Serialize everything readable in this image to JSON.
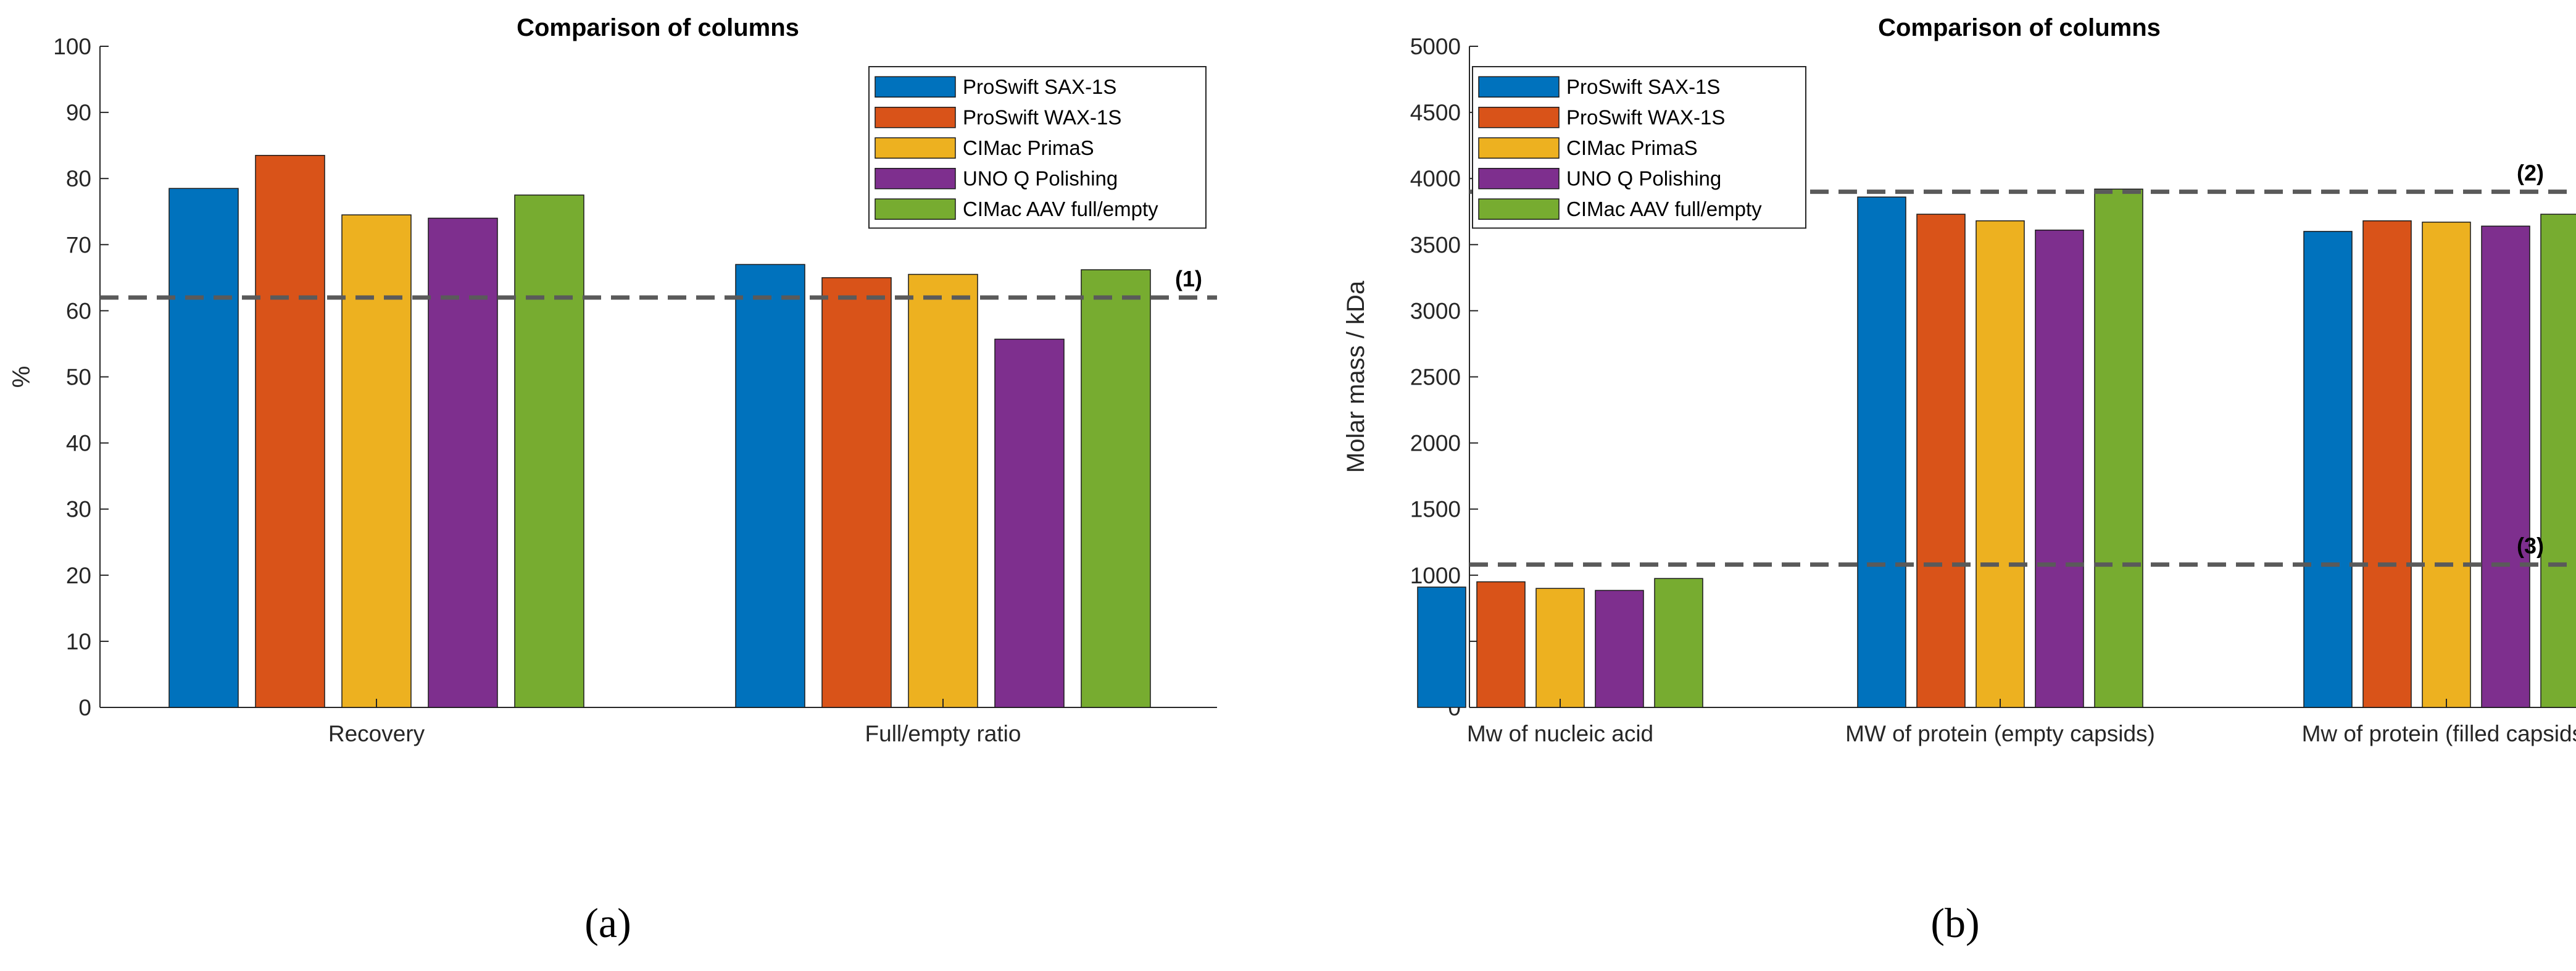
{
  "colors": [
    "#0072BD",
    "#D95319",
    "#EDB120",
    "#7E2F8E",
    "#77AC30"
  ],
  "captions": [
    "(a)",
    "(b)"
  ],
  "chart_data": [
    {
      "type": "bar",
      "title": "Comparison of columns",
      "xlabel": "",
      "ylabel": "%",
      "ylim": [
        0,
        100
      ],
      "yticks": [
        0,
        10,
        20,
        30,
        40,
        50,
        60,
        70,
        80,
        90,
        100
      ],
      "categories": [
        "Recovery",
        "Full/empty ratio"
      ],
      "series": [
        {
          "name": "ProSwift SAX-1S",
          "values": [
            78.5,
            67
          ]
        },
        {
          "name": "ProSwift WAX-1S",
          "values": [
            83.5,
            65
          ]
        },
        {
          "name": "CIMac PrimaS",
          "values": [
            74.5,
            65.5
          ]
        },
        {
          "name": "UNO Q Polishing",
          "values": [
            74,
            55.7
          ]
        },
        {
          "name": "CIMac AAV full/empty",
          "values": [
            77.5,
            66.2
          ]
        }
      ],
      "reference_lines": [
        {
          "label": "(1)",
          "value": 62
        }
      ],
      "legend_position": "top-right",
      "grid": false
    },
    {
      "type": "bar",
      "title": "Comparison of columns",
      "xlabel": "",
      "ylabel": "Molar mass / kDa",
      "ylim": [
        0,
        5000
      ],
      "yticks": [
        0,
        500,
        1000,
        1500,
        2000,
        2500,
        3000,
        3500,
        4000,
        4500,
        5000
      ],
      "categories": [
        "Mw of nucleic acid",
        "MW of protein (empty capsids)",
        "Mw of protein (filled capsids)"
      ],
      "series": [
        {
          "name": "ProSwift SAX-1S",
          "values": [
            910,
            3860,
            3600
          ]
        },
        {
          "name": "ProSwift WAX-1S",
          "values": [
            950,
            3730,
            3680
          ]
        },
        {
          "name": "CIMac PrimaS",
          "values": [
            900,
            3680,
            3670
          ]
        },
        {
          "name": "UNO Q Polishing",
          "values": [
            885,
            3610,
            3640
          ]
        },
        {
          "name": "CIMac AAV full/empty",
          "values": [
            975,
            3920,
            3730
          ]
        }
      ],
      "reference_lines": [
        {
          "label": "(2)",
          "value": 3900
        },
        {
          "label": "(3)",
          "value": 1080
        }
      ],
      "legend_position": "top-left",
      "grid": false
    }
  ]
}
